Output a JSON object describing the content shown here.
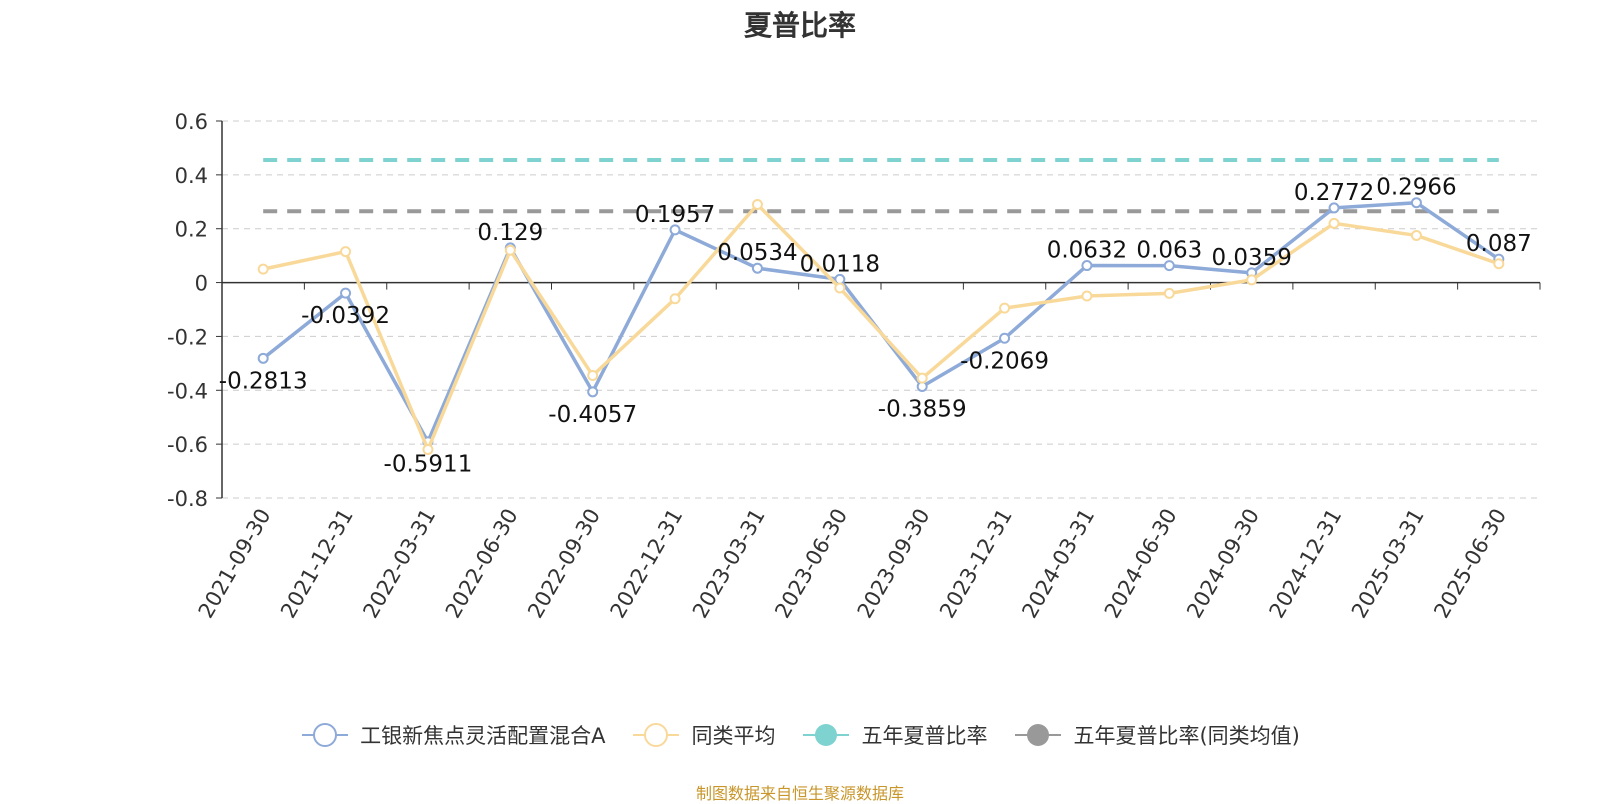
{
  "chart_data": {
    "type": "line",
    "title": "夏普比率",
    "categories": [
      "2021-09-30",
      "2021-12-31",
      "2022-03-31",
      "2022-06-30",
      "2022-09-30",
      "2022-12-31",
      "2023-03-31",
      "2023-06-30",
      "2023-09-30",
      "2023-12-31",
      "2024-03-31",
      "2024-06-30",
      "2024-09-30",
      "2024-12-31",
      "2025-03-31",
      "2025-06-30"
    ],
    "ylim": [
      -0.8,
      0.6
    ],
    "yticks": [
      "0.6",
      "0.4",
      "0.2",
      "0",
      "-0.2",
      "-0.4",
      "-0.6",
      "-0.8"
    ],
    "grid": true,
    "legend_position": "bottom",
    "series": [
      {
        "name": "工银新焦点灵活配置混合A",
        "color": "#8eaad8",
        "style": "line",
        "values": [
          -0.2813,
          -0.0392,
          -0.5911,
          0.129,
          -0.4057,
          0.1957,
          0.0534,
          0.0118,
          -0.3859,
          -0.2069,
          0.0632,
          0.063,
          0.0359,
          0.2772,
          0.2966,
          0.087
        ],
        "labels": [
          "-0.2813",
          "-0.0392",
          "-0.5911",
          "0.129",
          "-0.4057",
          "0.1957",
          "0.0534",
          "0.0118",
          "-0.3859",
          "-0.2069",
          "0.0632",
          "0.063",
          "0.0359",
          "0.2772",
          "0.2966",
          "0.087"
        ]
      },
      {
        "name": "同类平均",
        "color": "#f9d99a",
        "style": "line",
        "values": [
          0.05,
          0.115,
          -0.62,
          0.12,
          -0.345,
          -0.06,
          0.29,
          -0.02,
          -0.355,
          -0.095,
          -0.05,
          -0.04,
          0.01,
          0.22,
          0.175,
          0.07
        ]
      },
      {
        "name": "五年夏普比率",
        "color": "#7ed3d1",
        "style": "dashed",
        "value": 0.455
      },
      {
        "name": "五年夏普比率(同类均值)",
        "color": "#999999",
        "style": "dashed",
        "value": 0.265
      }
    ]
  },
  "footer": {
    "source": "制图数据来自恒生聚源数据库"
  }
}
